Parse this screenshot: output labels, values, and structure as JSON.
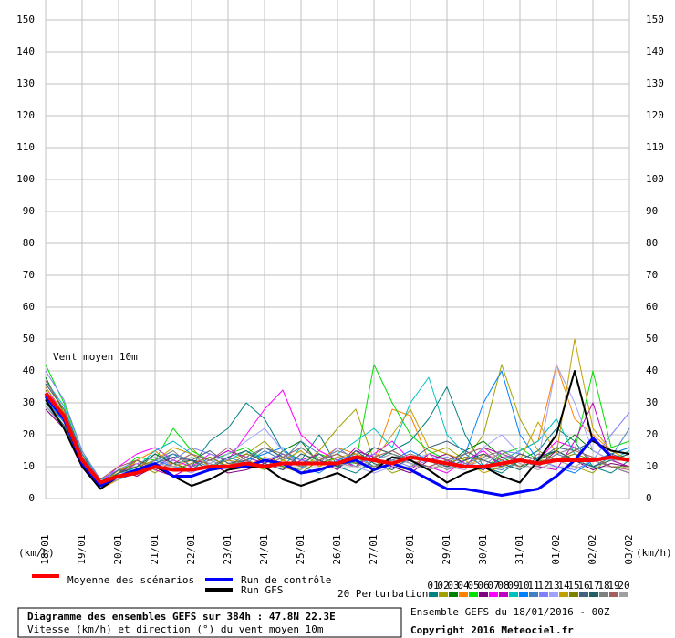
{
  "chart_data": {
    "type": "line",
    "annotation": "Vent moyen 10m",
    "y_label": "(km/h)",
    "perturbations_label": "20 Perturbations",
    "xlim": [
      0,
      384
    ],
    "ylim": [
      0,
      150
    ],
    "yticks": [
      0,
      10,
      20,
      30,
      40,
      50,
      60,
      70,
      80,
      90,
      100,
      110,
      120,
      130,
      140,
      150
    ],
    "xticks": [
      {
        "value": 0,
        "label": "18/01"
      },
      {
        "value": 24,
        "label": "19/01"
      },
      {
        "value": 48,
        "label": "20/01"
      },
      {
        "value": 72,
        "label": "21/01"
      },
      {
        "value": 96,
        "label": "22/01"
      },
      {
        "value": 120,
        "label": "23/01"
      },
      {
        "value": 144,
        "label": "24/01"
      },
      {
        "value": 168,
        "label": "25/01"
      },
      {
        "value": 192,
        "label": "26/01"
      },
      {
        "value": 216,
        "label": "27/01"
      },
      {
        "value": 240,
        "label": "28/01"
      },
      {
        "value": 264,
        "label": "29/01"
      },
      {
        "value": 288,
        "label": "30/01"
      },
      {
        "value": 312,
        "label": "31/01"
      },
      {
        "value": 336,
        "label": "01/02"
      },
      {
        "value": 360,
        "label": "02/02"
      },
      {
        "value": 384,
        "label": "03/02"
      }
    ],
    "grid": true,
    "x": [
      0,
      12,
      24,
      36,
      48,
      60,
      72,
      84,
      96,
      108,
      120,
      132,
      144,
      156,
      168,
      180,
      192,
      204,
      216,
      228,
      240,
      252,
      264,
      276,
      288,
      300,
      312,
      324,
      336,
      348,
      360,
      372,
      384
    ],
    "main_series": [
      {
        "name": "Moyenne des scénarios",
        "color": "#ff0000",
        "width": 4,
        "values": [
          33,
          26,
          12,
          5,
          7,
          8,
          10,
          9,
          9,
          10,
          10,
          11,
          10,
          11,
          11,
          11,
          11,
          13,
          12,
          11,
          13,
          12,
          11,
          10,
          10,
          11,
          12,
          11,
          12,
          12,
          12,
          13,
          12
        ]
      },
      {
        "name": "Run de contrôle",
        "color": "#0000ff",
        "width": 3,
        "values": [
          32,
          25,
          11,
          4,
          7,
          9,
          11,
          7,
          7,
          9,
          10,
          10,
          12,
          11,
          8,
          9,
          11,
          12,
          9,
          11,
          9,
          6,
          3,
          3,
          2,
          1,
          2,
          3,
          7,
          12,
          19,
          13,
          12
        ]
      },
      {
        "name": "Run GFS",
        "color": "#000000",
        "width": 2,
        "values": [
          31,
          22,
          10,
          3,
          7,
          8,
          10,
          7,
          4,
          6,
          9,
          10,
          10,
          6,
          4,
          6,
          8,
          5,
          9,
          13,
          12,
          9,
          5,
          8,
          10,
          7,
          5,
          12,
          20,
          40,
          18,
          15,
          14
        ]
      }
    ],
    "series": [
      {
        "name": "01",
        "color": "#008080",
        "values": [
          36,
          28,
          14,
          5,
          8,
          10,
          12,
          14,
          10,
          18,
          22,
          30,
          25,
          15,
          12,
          20,
          10,
          8,
          12,
          15,
          18,
          25,
          35,
          20,
          10,
          8,
          12,
          15,
          22,
          18,
          10,
          8,
          12
        ]
      },
      {
        "name": "02",
        "color": "#a0a000",
        "values": [
          34,
          26,
          12,
          4,
          9,
          11,
          8,
          12,
          16,
          10,
          12,
          14,
          18,
          12,
          10,
          15,
          22,
          28,
          12,
          8,
          10,
          14,
          16,
          12,
          20,
          42,
          25,
          15,
          12,
          10,
          8,
          14,
          16
        ]
      },
      {
        "name": "03",
        "color": "#008000",
        "values": [
          38,
          27,
          13,
          6,
          7,
          9,
          14,
          11,
          9,
          13,
          10,
          12,
          9,
          15,
          18,
          11,
          13,
          10,
          16,
          14,
          12,
          9,
          11,
          15,
          18,
          13,
          10,
          12,
          15,
          20,
          15,
          12,
          10
        ]
      },
      {
        "name": "04",
        "color": "#ff8000",
        "values": [
          30,
          24,
          10,
          3,
          6,
          12,
          15,
          10,
          12,
          9,
          11,
          10,
          13,
          11,
          8,
          12,
          16,
          14,
          12,
          28,
          26,
          12,
          10,
          9,
          14,
          12,
          15,
          18,
          42,
          25,
          20,
          15,
          12
        ]
      },
      {
        "name": "05",
        "color": "#00e000",
        "values": [
          42,
          30,
          15,
          5,
          8,
          13,
          12,
          22,
          15,
          12,
          14,
          16,
          12,
          10,
          9,
          14,
          12,
          11,
          42,
          30,
          20,
          15,
          12,
          10,
          9,
          14,
          16,
          12,
          12,
          15,
          40,
          16,
          18
        ]
      },
      {
        "name": "06",
        "color": "#800080",
        "values": [
          28,
          22,
          11,
          4,
          9,
          7,
          10,
          13,
          12,
          11,
          8,
          9,
          11,
          14,
          10,
          12,
          9,
          15,
          13,
          10,
          8,
          12,
          14,
          11,
          9,
          13,
          12,
          10,
          15,
          12,
          9,
          11,
          10
        ]
      },
      {
        "name": "07",
        "color": "#ff00ff",
        "values": [
          35,
          26,
          12,
          5,
          10,
          14,
          16,
          12,
          10,
          14,
          12,
          20,
          28,
          34,
          20,
          15,
          12,
          10,
          14,
          18,
          12,
          10,
          8,
          12,
          15,
          10,
          14,
          12,
          18,
          16,
          12,
          10,
          8
        ]
      },
      {
        "name": "08",
        "color": "#c000c0",
        "values": [
          33,
          25,
          13,
          4,
          8,
          11,
          9,
          7,
          10,
          12,
          15,
          13,
          11,
          9,
          12,
          14,
          10,
          16,
          12,
          11,
          9,
          14,
          12,
          10,
          16,
          14,
          12,
          10,
          9,
          18,
          30,
          12,
          10
        ]
      },
      {
        "name": "09",
        "color": "#00c0c0",
        "values": [
          37,
          29,
          14,
          6,
          7,
          10,
          15,
          18,
          14,
          10,
          12,
          15,
          12,
          10,
          16,
          12,
          14,
          18,
          22,
          16,
          30,
          38,
          20,
          14,
          10,
          12,
          15,
          18,
          25,
          14,
          10,
          12,
          15
        ]
      },
      {
        "name": "10",
        "color": "#0080ff",
        "values": [
          31,
          24,
          11,
          4,
          6,
          8,
          12,
          10,
          9,
          13,
          10,
          12,
          14,
          16,
          10,
          8,
          12,
          14,
          10,
          12,
          15,
          12,
          10,
          14,
          30,
          40,
          20,
          12,
          10,
          8,
          12,
          14,
          16
        ]
      },
      {
        "name": "11",
        "color": "#4080c0",
        "values": [
          29,
          23,
          10,
          3,
          8,
          9,
          11,
          14,
          12,
          10,
          13,
          11,
          15,
          12,
          18,
          14,
          10,
          12,
          9,
          13,
          11,
          10,
          12,
          14,
          10,
          9,
          12,
          10,
          14,
          12,
          10,
          13,
          22
        ]
      },
      {
        "name": "12",
        "color": "#8080ff",
        "values": [
          40,
          31,
          15,
          6,
          9,
          12,
          10,
          12,
          16,
          14,
          12,
          10,
          12,
          14,
          12,
          11,
          16,
          12,
          14,
          12,
          10,
          12,
          13,
          11,
          10,
          15,
          14,
          12,
          10,
          9,
          12,
          20,
          27
        ]
      },
      {
        "name": "13",
        "color": "#a0a0ff",
        "values": [
          32,
          25,
          12,
          5,
          7,
          11,
          13,
          10,
          8,
          11,
          14,
          18,
          22,
          15,
          10,
          12,
          14,
          10,
          8,
          10,
          12,
          14,
          10,
          9,
          16,
          20,
          14,
          12,
          42,
          30,
          15,
          12,
          14
        ]
      },
      {
        "name": "14",
        "color": "#c0a000",
        "values": [
          35,
          27,
          13,
          4,
          9,
          10,
          12,
          16,
          14,
          10,
          12,
          11,
          9,
          12,
          15,
          10,
          13,
          14,
          12,
          20,
          28,
          16,
          14,
          12,
          8,
          10,
          12,
          24,
          14,
          50,
          22,
          15,
          12
        ]
      },
      {
        "name": "15",
        "color": "#808000",
        "values": [
          34,
          26,
          12,
          5,
          8,
          12,
          10,
          9,
          11,
          13,
          10,
          14,
          12,
          10,
          8,
          12,
          14,
          11,
          10,
          13,
          12,
          9,
          11,
          13,
          12,
          10,
          14,
          12,
          12,
          14,
          12,
          10,
          10
        ]
      },
      {
        "name": "16",
        "color": "#406080",
        "values": [
          36,
          28,
          14,
          5,
          9,
          8,
          11,
          13,
          12,
          15,
          11,
          12,
          16,
          13,
          11,
          14,
          10,
          12,
          16,
          14,
          12,
          16,
          18,
          15,
          12,
          10,
          14,
          12,
          16,
          15,
          18,
          14,
          12
        ]
      },
      {
        "name": "17",
        "color": "#206060",
        "values": [
          30,
          23,
          11,
          4,
          8,
          10,
          14,
          11,
          12,
          9,
          13,
          15,
          11,
          9,
          14,
          12,
          10,
          15,
          11,
          9,
          13,
          12,
          10,
          12,
          14,
          11,
          9,
          13,
          15,
          12,
          10,
          12,
          14
        ]
      },
      {
        "name": "18",
        "color": "#808080",
        "values": [
          33,
          26,
          12,
          5,
          7,
          9,
          12,
          15,
          10,
          12,
          10,
          13,
          16,
          14,
          10,
          12,
          15,
          13,
          10,
          12,
          14,
          12,
          9,
          11,
          13,
          15,
          12,
          10,
          14,
          16,
          12,
          10,
          8
        ]
      },
      {
        "name": "19",
        "color": "#a06060",
        "values": [
          37,
          28,
          13,
          6,
          10,
          12,
          9,
          11,
          14,
          12,
          16,
          12,
          10,
          13,
          16,
          12,
          14,
          11,
          13,
          15,
          12,
          10,
          12,
          14,
          16,
          12,
          10,
          14,
          12,
          15,
          13,
          10,
          9
        ]
      },
      {
        "name": "20",
        "color": "#a0a0a0",
        "values": [
          29,
          22,
          10,
          4,
          6,
          9,
          11,
          10,
          13,
          11,
          9,
          10,
          12,
          11,
          9,
          13,
          11,
          10,
          12,
          14,
          11,
          9,
          11,
          10,
          12,
          14,
          11,
          9,
          12,
          10,
          13,
          12,
          12
        ]
      }
    ]
  },
  "footer": {
    "title": "Diagramme des ensembles GEFS sur 384h : 47.8N 22.3E",
    "subtitle": "Vitesse (km/h) et direction (°) du vent moyen 10m",
    "run": "Ensemble GEFS du 18/01/2016 - 00Z",
    "copyright": "Copyright 2016 Meteociel.fr"
  }
}
